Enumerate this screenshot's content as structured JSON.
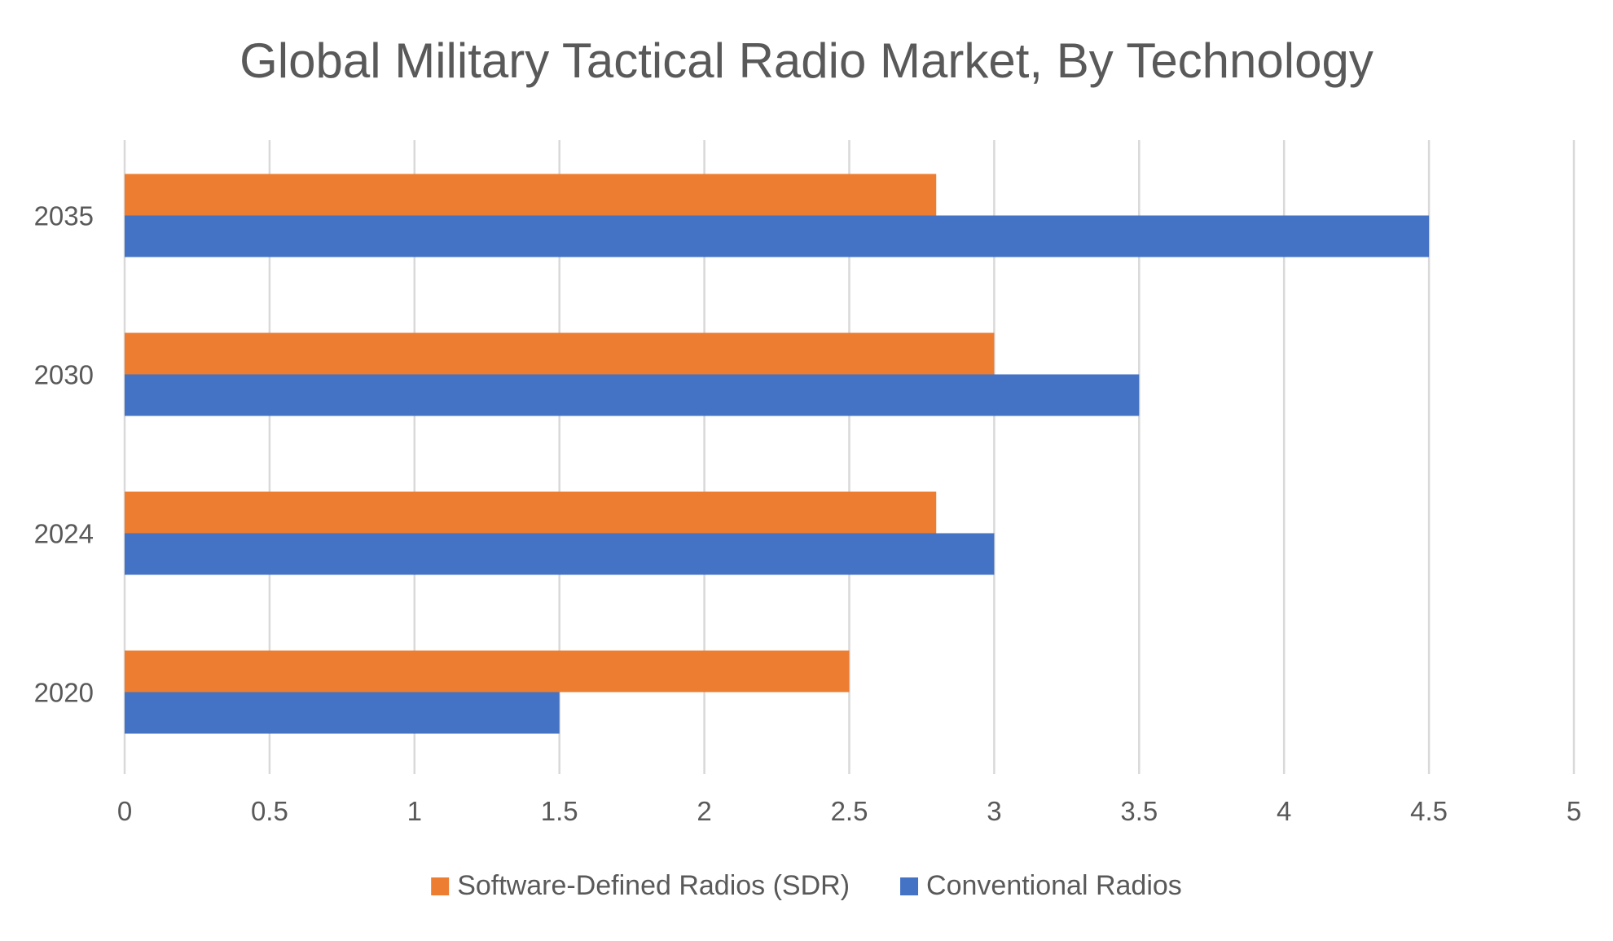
{
  "chart_data": {
    "type": "bar",
    "orientation": "horizontal",
    "title": "Global Military Tactical Radio Market, By Technology",
    "xlabel": "",
    "ylabel": "",
    "categories": [
      "2020",
      "2024",
      "2030",
      "2035"
    ],
    "series": [
      {
        "name": "Software-Defined Radios (SDR)",
        "color": "#ED7D31",
        "values": [
          2.5,
          2.8,
          3.0,
          2.8
        ]
      },
      {
        "name": "Conventional Radios",
        "color": "#4472C4",
        "values": [
          1.5,
          3.0,
          3.5,
          4.5
        ]
      }
    ],
    "xlim": [
      0,
      5
    ],
    "xticks": [
      "0",
      "0.5",
      "1",
      "1.5",
      "2",
      "2.5",
      "3",
      "3.5",
      "4",
      "4.5",
      "5"
    ],
    "grid": true,
    "legend_position": "bottom"
  }
}
